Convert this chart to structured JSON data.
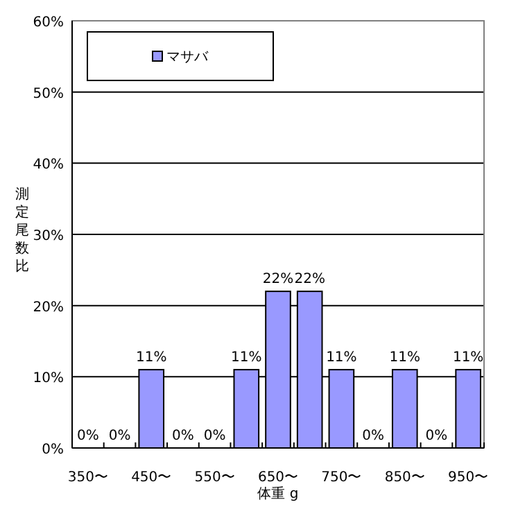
{
  "chart_data": {
    "type": "bar",
    "xlabel": "体重 g",
    "ylabel": "測定尾数比",
    "categories": [
      "350〜",
      null,
      "450〜",
      null,
      "550〜",
      null,
      "650〜",
      null,
      "750〜",
      null,
      "850〜",
      null,
      "950〜"
    ],
    "series": [
      {
        "name": "マサバ",
        "color": "#9999ff",
        "values": [
          0,
          0,
          11,
          0,
          0,
          11,
          22,
          22,
          11,
          0,
          11,
          0,
          11
        ],
        "value_labels": [
          "0%",
          "0%",
          "11%",
          "0%",
          "0%",
          "11%",
          "22%",
          "22%",
          "11%",
          "0%",
          "11%",
          "0%",
          "11%"
        ]
      }
    ],
    "ylim": [
      0,
      60
    ],
    "yticks": [
      {
        "value": 0,
        "label": "0%"
      },
      {
        "value": 10,
        "label": "10%"
      },
      {
        "value": 20,
        "label": "20%"
      },
      {
        "value": 30,
        "label": "30%"
      },
      {
        "value": 40,
        "label": "40%"
      },
      {
        "value": 50,
        "label": "50%"
      },
      {
        "value": 60,
        "label": "60%"
      }
    ],
    "grid": "y",
    "legend": "top left"
  }
}
